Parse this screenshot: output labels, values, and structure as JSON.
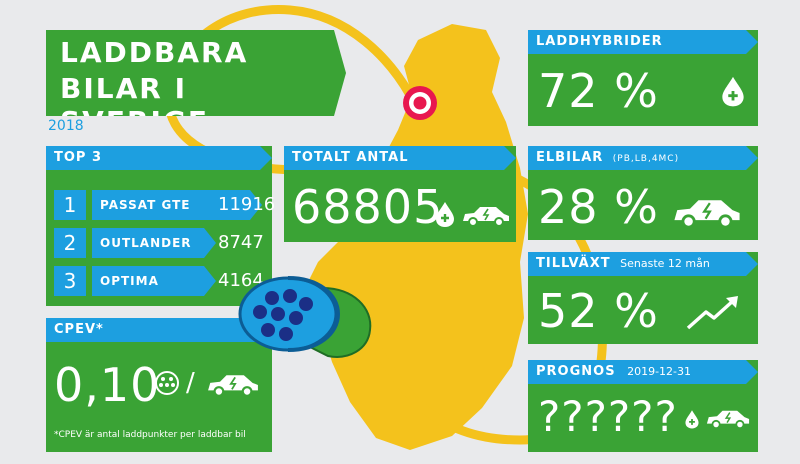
{
  "header": {
    "title_line1": "LADDBARA",
    "title_line2": "BILAR I SVERIGE",
    "year": "2018"
  },
  "top3": {
    "title": "TOP 3",
    "items": [
      {
        "rank": "1",
        "name": "PASSAT GTE",
        "value": "11916"
      },
      {
        "rank": "2",
        "name": "OUTLANDER",
        "value": "8747"
      },
      {
        "rank": "3",
        "name": "OPTIMA",
        "value": "4164"
      }
    ]
  },
  "total": {
    "title": "TOTALT ANTAL",
    "value": "68805"
  },
  "hybrids": {
    "title": "LADDHYBRIDER",
    "value": "72 %"
  },
  "ev": {
    "title": "ELBILAR",
    "subtitle": "(PB,LB,4MC)",
    "value": "28 %"
  },
  "growth": {
    "title": "TILLVÄXT",
    "subtitle": "Senaste 12 mån",
    "value": "52 %"
  },
  "cpev": {
    "title": "CPEV*",
    "value": "0,10",
    "separator": "/",
    "footnote": "*CPEV är antal laddpunkter per laddbar bil"
  },
  "forecast": {
    "title": "PROGNOS",
    "date": "2019-12-31",
    "value": "??????"
  },
  "icons": [
    "fuel-drop-plus-icon",
    "electric-car-icon",
    "trend-up-arrow-icon",
    "charge-socket-icon",
    "charging-plug-icon",
    "location-pin-icon",
    "sweden-map"
  ],
  "colors": {
    "panel_green": "#3aa335",
    "title_blue": "#1d9fe0",
    "map_yellow": "#f4c21c",
    "background": "#e9eaec",
    "pin_red": "#e8174f"
  }
}
